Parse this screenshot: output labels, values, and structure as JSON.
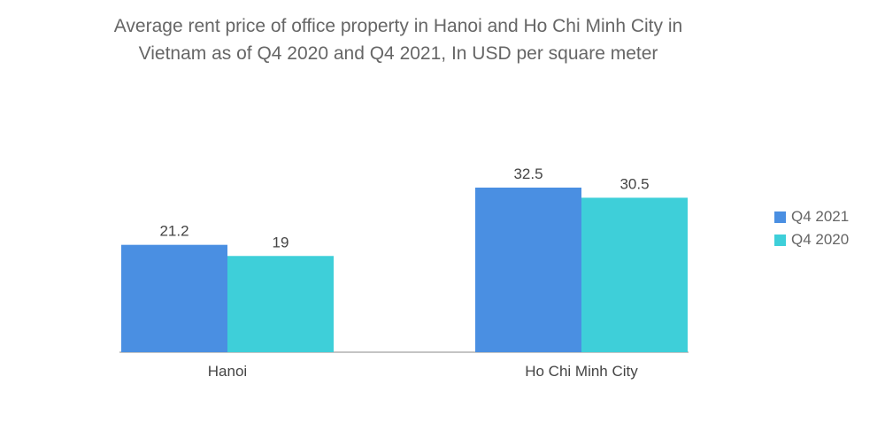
{
  "chart_data": {
    "type": "bar",
    "title": "Average rent price of office property in Hanoi and Ho Chi Minh City in Vietnam as of Q4 2020 and Q4 2021, In USD per square meter",
    "title_lines": [
      "Average rent price of office property in Hanoi and Ho Chi Minh City in",
      "Vietnam as of Q4 2020 and Q4 2021, In USD per square meter"
    ],
    "categories": [
      "Hanoi",
      "Ho Chi Minh City"
    ],
    "series": [
      {
        "name": "Q4 2021",
        "color": "#4a8fe2",
        "values": [
          21.2,
          32.5
        ],
        "labels": [
          "21.2",
          "32.5"
        ]
      },
      {
        "name": "Q4 2020",
        "color": "#3ecfd9",
        "values": [
          19,
          30.5
        ],
        "labels": [
          "19",
          "30.5"
        ]
      }
    ],
    "xlabel": "",
    "ylabel": "",
    "ylim": [
      0,
      32.5
    ],
    "grid": false,
    "legend": "right"
  }
}
